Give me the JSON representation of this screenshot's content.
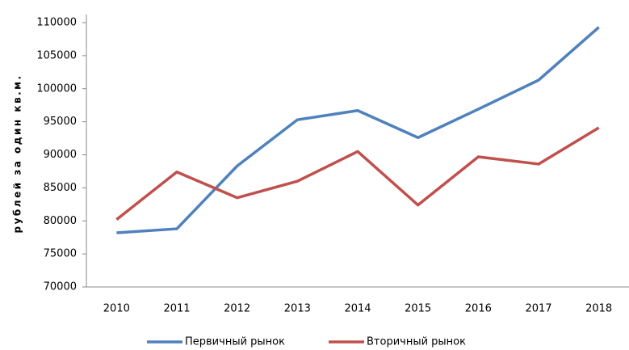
{
  "chart_data": {
    "type": "line",
    "y_label": "рублей за один кв.м.",
    "categories": [
      "2010",
      "2011",
      "2012",
      "2013",
      "2014",
      "2015",
      "2016",
      "2017",
      "2018"
    ],
    "series": [
      {
        "name": "Первичный рынок",
        "color": "#4f81bd",
        "values": [
          78200,
          78800,
          88300,
          95300,
          96700,
          92600,
          96900,
          101300,
          109300
        ]
      },
      {
        "name": "Вторичный рынок",
        "color": "#c0504d",
        "values": [
          80200,
          87400,
          83500,
          86000,
          90500,
          82400,
          89700,
          88600,
          94100
        ]
      }
    ],
    "ylim": [
      70000,
      110000
    ],
    "yticks": [
      70000,
      75000,
      80000,
      85000,
      90000,
      95000,
      100000,
      105000,
      110000
    ],
    "grid": false,
    "legend": "bottom"
  }
}
